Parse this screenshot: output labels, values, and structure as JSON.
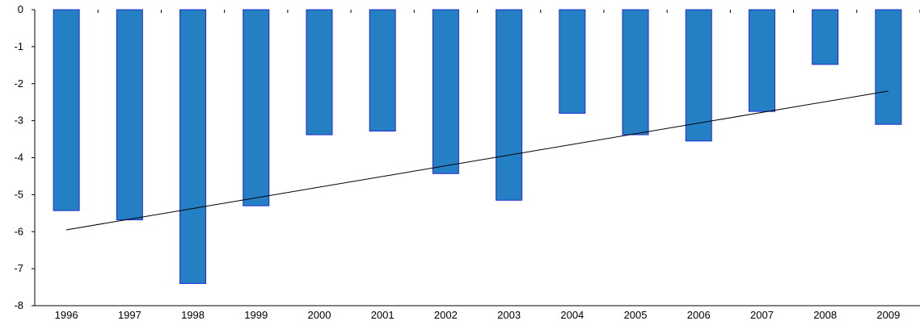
{
  "chart_data": {
    "type": "bar",
    "categories": [
      "1996",
      "1997",
      "1998",
      "1999",
      "2000",
      "2001",
      "2002",
      "2003",
      "2004",
      "2005",
      "2006",
      "2007",
      "2008",
      "2009"
    ],
    "values": [
      -5.43,
      -5.68,
      -7.4,
      -5.3,
      -3.38,
      -3.28,
      -4.43,
      -5.15,
      -2.8,
      -3.38,
      -3.55,
      -2.75,
      -1.48,
      -3.1
    ],
    "ylim": [
      -8,
      0
    ],
    "yticks": [
      "0",
      "-1",
      "-2",
      "-3",
      "-4",
      "-5",
      "-6",
      "-7",
      "-8"
    ],
    "trendline": {
      "type": "linear",
      "start": -5.95,
      "end": -2.2
    },
    "title": "",
    "xlabel": "",
    "ylabel": "",
    "grid": false,
    "legend": "none",
    "colors": {
      "bar_fill": "#2480c3",
      "bar_stroke": "#1f2ad8",
      "trendline": "#000000",
      "axis": "#000000"
    }
  }
}
